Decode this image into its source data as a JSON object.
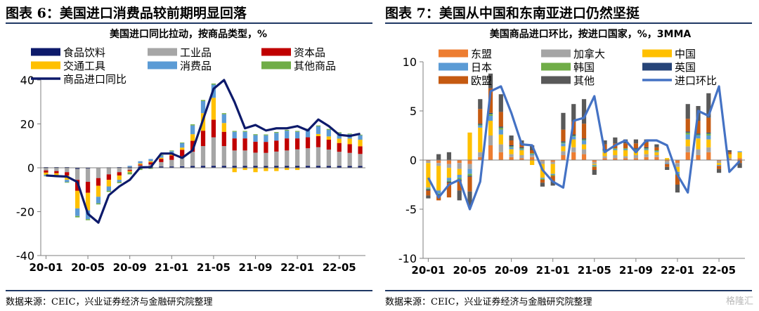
{
  "left": {
    "figure_title": "图表 6：美国进口消费品较前期明显回落",
    "source": "数据来源：CEIC，兴业证券经济与金融研究院整理"
  },
  "right": {
    "figure_title": "图表 7：美国从中国和东南亚进口仍然坚挺",
    "source": "数据来源：CEIC，兴业证券经济与金融研究院整理"
  },
  "watermark": "格隆汇",
  "chart_data": [
    {
      "type": "bar",
      "stacked": true,
      "title": "美国进口同比拉动，按商品类型，%",
      "ylim": [
        -40,
        40
      ],
      "yticks": [
        -40,
        -20,
        0,
        20,
        40
      ],
      "xtick_labels": [
        "20-01",
        "20-05",
        "20-09",
        "21-01",
        "21-05",
        "21-09",
        "22-01",
        "22-05"
      ],
      "xtick_index": [
        0,
        4,
        8,
        12,
        16,
        20,
        24,
        28
      ],
      "grid": false,
      "legend_position": "top",
      "categories": [
        "20-01",
        "20-02",
        "20-03",
        "20-04",
        "20-05",
        "20-06",
        "20-07",
        "20-08",
        "20-09",
        "20-10",
        "20-11",
        "20-12",
        "21-01",
        "21-02",
        "21-03",
        "21-04",
        "21-05",
        "21-06",
        "21-07",
        "21-08",
        "21-09",
        "21-10",
        "21-11",
        "21-12",
        "22-01",
        "22-02",
        "22-03",
        "22-04",
        "22-05",
        "22-06",
        "22-07"
      ],
      "series": [
        {
          "name": "食品饮料",
          "color": "#0d1a6b",
          "values": [
            0.3,
            0.3,
            0.3,
            -0.5,
            -0.4,
            -0.2,
            0.2,
            0.3,
            0.4,
            0.5,
            0.5,
            0.6,
            0.6,
            0.7,
            0.8,
            0.9,
            0.9,
            0.9,
            0.9,
            0.9,
            0.9,
            0.8,
            0.9,
            0.9,
            0.9,
            0.9,
            0.9,
            0.8,
            0.8,
            0.8,
            0.8
          ]
        },
        {
          "name": "工业品",
          "color": "#a6a6a6",
          "values": [
            -1.2,
            -1.5,
            -2,
            -5,
            -6,
            -4.5,
            -3,
            -2,
            -1,
            0.5,
            1,
            2,
            3,
            4.5,
            6.5,
            9,
            13,
            9,
            7,
            7,
            6,
            6,
            6.5,
            7,
            7.5,
            8,
            8.5,
            7.5,
            6.5,
            6,
            5.5
          ]
        },
        {
          "name": "资本品",
          "color": "#c00000",
          "values": [
            -1,
            -1,
            -1.5,
            -5,
            -5,
            -3.5,
            -2.5,
            -1.5,
            -0.5,
            0.5,
            1,
            1.5,
            2,
            3,
            5,
            7,
            8,
            6.5,
            5.5,
            5.5,
            5,
            5,
            5,
            5.5,
            5,
            5,
            5,
            4.5,
            4,
            4,
            3.5
          ]
        },
        {
          "name": "交通工具",
          "color": "#ffc000",
          "values": [
            -1,
            -1,
            -2,
            -8,
            -8,
            -5,
            -3,
            -2,
            -0.5,
            0.5,
            0.5,
            0.5,
            0.5,
            1,
            3,
            8,
            10,
            4,
            -2,
            -1,
            -2,
            -1.5,
            -1.5,
            -1,
            -1,
            0,
            1,
            1.5,
            2,
            2.5,
            3
          ]
        },
        {
          "name": "消费品",
          "color": "#5b9bd5",
          "values": [
            -0.5,
            -0.5,
            -1,
            -3.5,
            -4,
            -3,
            -2,
            -1,
            0.5,
            1,
            1,
            1,
            1.5,
            2,
            4,
            5.5,
            6,
            4,
            3,
            3,
            3,
            3,
            3.5,
            3.5,
            3,
            3.5,
            3.5,
            3,
            2.5,
            2,
            2
          ]
        },
        {
          "name": "其他商品",
          "color": "#70ad47",
          "values": [
            -0.2,
            -0.2,
            -0.3,
            -0.6,
            -0.5,
            -0.5,
            -0.5,
            -0.5,
            -1,
            -1,
            -0.5,
            0.3,
            0.3,
            0.3,
            0.5,
            0.5,
            0.5,
            0.5,
            0.4,
            0.4,
            0.4,
            0.4,
            0.4,
            0.4,
            0.4,
            0.4,
            0.4,
            0.4,
            0.4,
            0.3,
            0.3
          ]
        },
        {
          "name": "商品进口同比",
          "type": "line",
          "color": "#0d1a6b",
          "values": [
            -3.5,
            -3.8,
            -4,
            -6.5,
            -21,
            -25,
            -12.5,
            -8.5,
            -5.5,
            0.2,
            0.3,
            6.5,
            6.5,
            4.5,
            8,
            22,
            36,
            40,
            30,
            18,
            19.5,
            17,
            18,
            18,
            19,
            17,
            22,
            19,
            15,
            14.5,
            15.5
          ]
        }
      ]
    },
    {
      "type": "bar",
      "stacked": true,
      "title": "美国商品进口环比，按进口国家，%，3MMA",
      "ylim": [
        -10,
        10
      ],
      "yticks": [
        -10,
        -5,
        0,
        5,
        10
      ],
      "xtick_labels": [
        "20-01",
        "20-05",
        "20-09",
        "21-01",
        "21-05",
        "21-09",
        "22-01",
        "22-05"
      ],
      "xtick_index": [
        0,
        4,
        8,
        12,
        16,
        20,
        24,
        28
      ],
      "grid": false,
      "legend_position": "top",
      "categories": [
        "20-01",
        "20-02",
        "20-03",
        "20-04",
        "20-05",
        "20-06",
        "20-07",
        "20-08",
        "20-09",
        "20-10",
        "20-11",
        "20-12",
        "21-01",
        "21-02",
        "21-03",
        "21-04",
        "21-05",
        "21-06",
        "21-07",
        "21-08",
        "21-09",
        "21-10",
        "21-11",
        "21-12",
        "22-01",
        "22-02",
        "22-03",
        "22-04",
        "22-05",
        "22-06",
        "22-07"
      ],
      "series": [
        {
          "name": "东盟",
          "color": "#ed7d31",
          "values": [
            -0.1,
            -0.3,
            -0.4,
            -0.3,
            -0.4,
            0.3,
            1.5,
            0.8,
            0.3,
            0.2,
            0.3,
            -0.1,
            -0.2,
            0.5,
            0.8,
            0.6,
            -0.2,
            0.2,
            0.2,
            0.2,
            0.2,
            0.3,
            0.3,
            -0.1,
            -0.3,
            0.8,
            0.5,
            0.8,
            -0.1,
            0.1,
            0.2
          ]
        },
        {
          "name": "加拿大",
          "color": "#a5a5a5",
          "values": [
            -0.2,
            -0.3,
            -0.4,
            -0.6,
            -0.5,
            0.5,
            1,
            0.8,
            0.3,
            0.3,
            0.2,
            -0.3,
            -0.2,
            0.4,
            0.5,
            0.5,
            -0.2,
            0.2,
            0.3,
            0.2,
            0.3,
            0.3,
            0.2,
            -0.2,
            -0.4,
            0.6,
            0.6,
            0.5,
            -0.2,
            0.1,
            0
          ]
        },
        {
          "name": "中国",
          "color": "#ffc000",
          "values": [
            -2.5,
            -2.5,
            -1,
            -0.6,
            2.8,
            2.5,
            1.5,
            1,
            0.5,
            0.5,
            -0.5,
            -1.4,
            -1,
            0.5,
            0.8,
            0.5,
            -0.1,
            0.4,
            0.5,
            0.6,
            0.4,
            0.4,
            0.3,
            0.2,
            -0.5,
            0.7,
            1.1,
            0.8,
            -0.2,
            0.4,
            0.6
          ]
        },
        {
          "name": "日本",
          "color": "#5b9bd5",
          "values": [
            -0.1,
            -0.3,
            -0.3,
            -0.3,
            -0.5,
            0.2,
            0.5,
            0.5,
            0.2,
            0.1,
            0.1,
            -0.1,
            -0.1,
            0.3,
            0.3,
            0.4,
            -0.1,
            0.1,
            0.1,
            0.1,
            0.1,
            0.1,
            0.1,
            -0.1,
            -0.2,
            0.5,
            0.3,
            0.4,
            -0.1,
            0,
            0.1
          ]
        },
        {
          "name": "韩国",
          "color": "#70ad47",
          "values": [
            -0.1,
            -0.1,
            -0.1,
            -0.2,
            -0.2,
            0.1,
            0.2,
            0.2,
            0.1,
            0.1,
            0.1,
            -0.1,
            -0.1,
            0.1,
            0.1,
            0.1,
            -0.1,
            0.1,
            0.1,
            0.1,
            0.1,
            0.1,
            0.1,
            0,
            -0.1,
            0.2,
            0.1,
            0.2,
            0,
            0,
            0
          ]
        },
        {
          "name": "英国",
          "color": "#264478",
          "values": [
            -0.1,
            -0.1,
            -0.1,
            -0.1,
            -0.1,
            0.1,
            0.1,
            0.1,
            0.1,
            0.1,
            0,
            0,
            0,
            0.1,
            0.1,
            0.1,
            0,
            0.1,
            0,
            0,
            0.1,
            0.1,
            0,
            0,
            0,
            0.1,
            0.1,
            0.1,
            0,
            0,
            0
          ]
        },
        {
          "name": "欧盟",
          "color": "#c55a11",
          "values": [
            -0.5,
            -0.5,
            -1.5,
            -1,
            -1.5,
            1.5,
            2.5,
            1.5,
            0.5,
            0.3,
            0.3,
            -0.3,
            -0.5,
            1.2,
            1.3,
            1.5,
            -0.3,
            0.5,
            0.5,
            0.5,
            0.5,
            0.5,
            0.3,
            -0.3,
            -1,
            1.3,
            1.3,
            1.5,
            -0.3,
            0.2,
            -0.3
          ]
        },
        {
          "name": "其他",
          "color": "#595959",
          "values": [
            -0.3,
            0.6,
            0.8,
            -1,
            -1.5,
            1,
            1.5,
            1.8,
            0.5,
            0.4,
            0.5,
            -0.4,
            -0.5,
            1.7,
            1.8,
            2.5,
            -0.5,
            0.4,
            0.6,
            0.4,
            0.4,
            0.3,
            0.3,
            -0.3,
            -0.8,
            1.5,
            1.5,
            2.5,
            -0.4,
            0.2,
            -0.5
          ]
        },
        {
          "name": "进口环比",
          "type": "line",
          "color": "#4472c4",
          "values": [
            -1.8,
            -3.8,
            -2.5,
            -2,
            -5,
            -2.2,
            7,
            7.5,
            4.8,
            1.6,
            1.5,
            -1,
            -2.2,
            -2.8,
            4,
            4.3,
            6.5,
            0.8,
            1.5,
            2,
            0.8,
            2,
            2,
            1.5,
            -1.5,
            -3.3,
            5,
            4.5,
            7.5,
            -1.2,
            -0.1
          ]
        }
      ]
    }
  ]
}
